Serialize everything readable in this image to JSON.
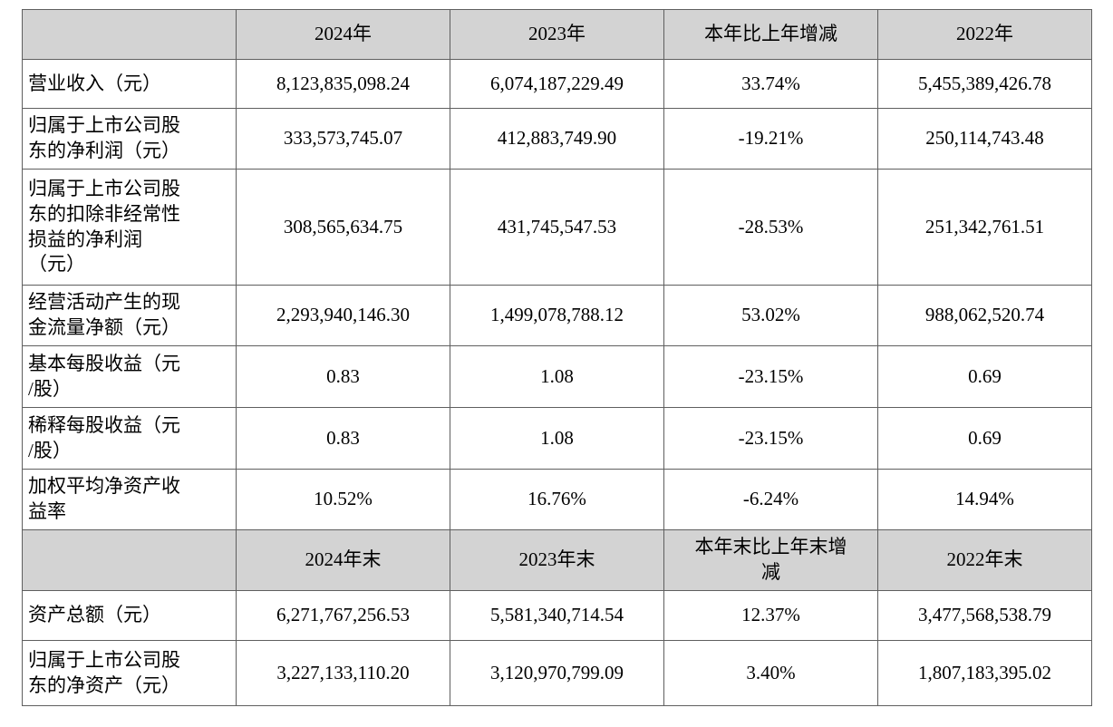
{
  "colors": {
    "header_and_label_background": "#d3d3d3",
    "cell_background": "#ffffff",
    "grid_line": "#5f5f5f",
    "text": "#000000"
  },
  "table": {
    "rows": [
      {
        "kind": "header",
        "label": "",
        "v1": "2024年",
        "v2": "2023年",
        "v3": "本年比上年增减",
        "v4": "2022年"
      },
      {
        "kind": "data",
        "label": "营业收入（元）",
        "v1": "8,123,835,098.24",
        "v2": "6,074,187,229.49",
        "v3": "33.74%",
        "v4": "5,455,389,426.78"
      },
      {
        "kind": "data",
        "label": "归属于上市公司股\n东的净利润（元）",
        "v1": "333,573,745.07",
        "v2": "412,883,749.90",
        "v3": "-19.21%",
        "v4": "250,114,743.48"
      },
      {
        "kind": "data",
        "label": "归属于上市公司股\n东的扣除非经常性\n损益的净利润\n（元）",
        "v1": "308,565,634.75",
        "v2": "431,745,547.53",
        "v3": "-28.53%",
        "v4": "251,342,761.51"
      },
      {
        "kind": "data",
        "label": "经营活动产生的现\n金流量净额（元）",
        "v1": "2,293,940,146.30",
        "v2": "1,499,078,788.12",
        "v3": "53.02%",
        "v4": "988,062,520.74"
      },
      {
        "kind": "data",
        "label": "基本每股收益（元\n/股）",
        "v1": "0.83",
        "v2": "1.08",
        "v3": "-23.15%",
        "v4": "0.69"
      },
      {
        "kind": "data",
        "label": "稀释每股收益（元\n/股）",
        "v1": "0.83",
        "v2": "1.08",
        "v3": "-23.15%",
        "v4": "0.69"
      },
      {
        "kind": "data",
        "label": "加权平均净资产收\n益率",
        "v1": "10.52%",
        "v2": "16.76%",
        "v3": "-6.24%",
        "v4": "14.94%"
      },
      {
        "kind": "header",
        "label": "",
        "v1": "2024年末",
        "v2": "2023年末",
        "v3": "本年末比上年末增\n减",
        "v4": "2022年末"
      },
      {
        "kind": "data",
        "label": "资产总额（元）",
        "v1": "6,271,767,256.53",
        "v2": "5,581,340,714.54",
        "v3": "12.37%",
        "v4": "3,477,568,538.79"
      },
      {
        "kind": "data",
        "label": "归属于上市公司股\n东的净资产（元）",
        "v1": "3,227,133,110.20",
        "v2": "3,120,970,799.09",
        "v3": "3.40%",
        "v4": "1,807,183,395.02"
      }
    ]
  }
}
